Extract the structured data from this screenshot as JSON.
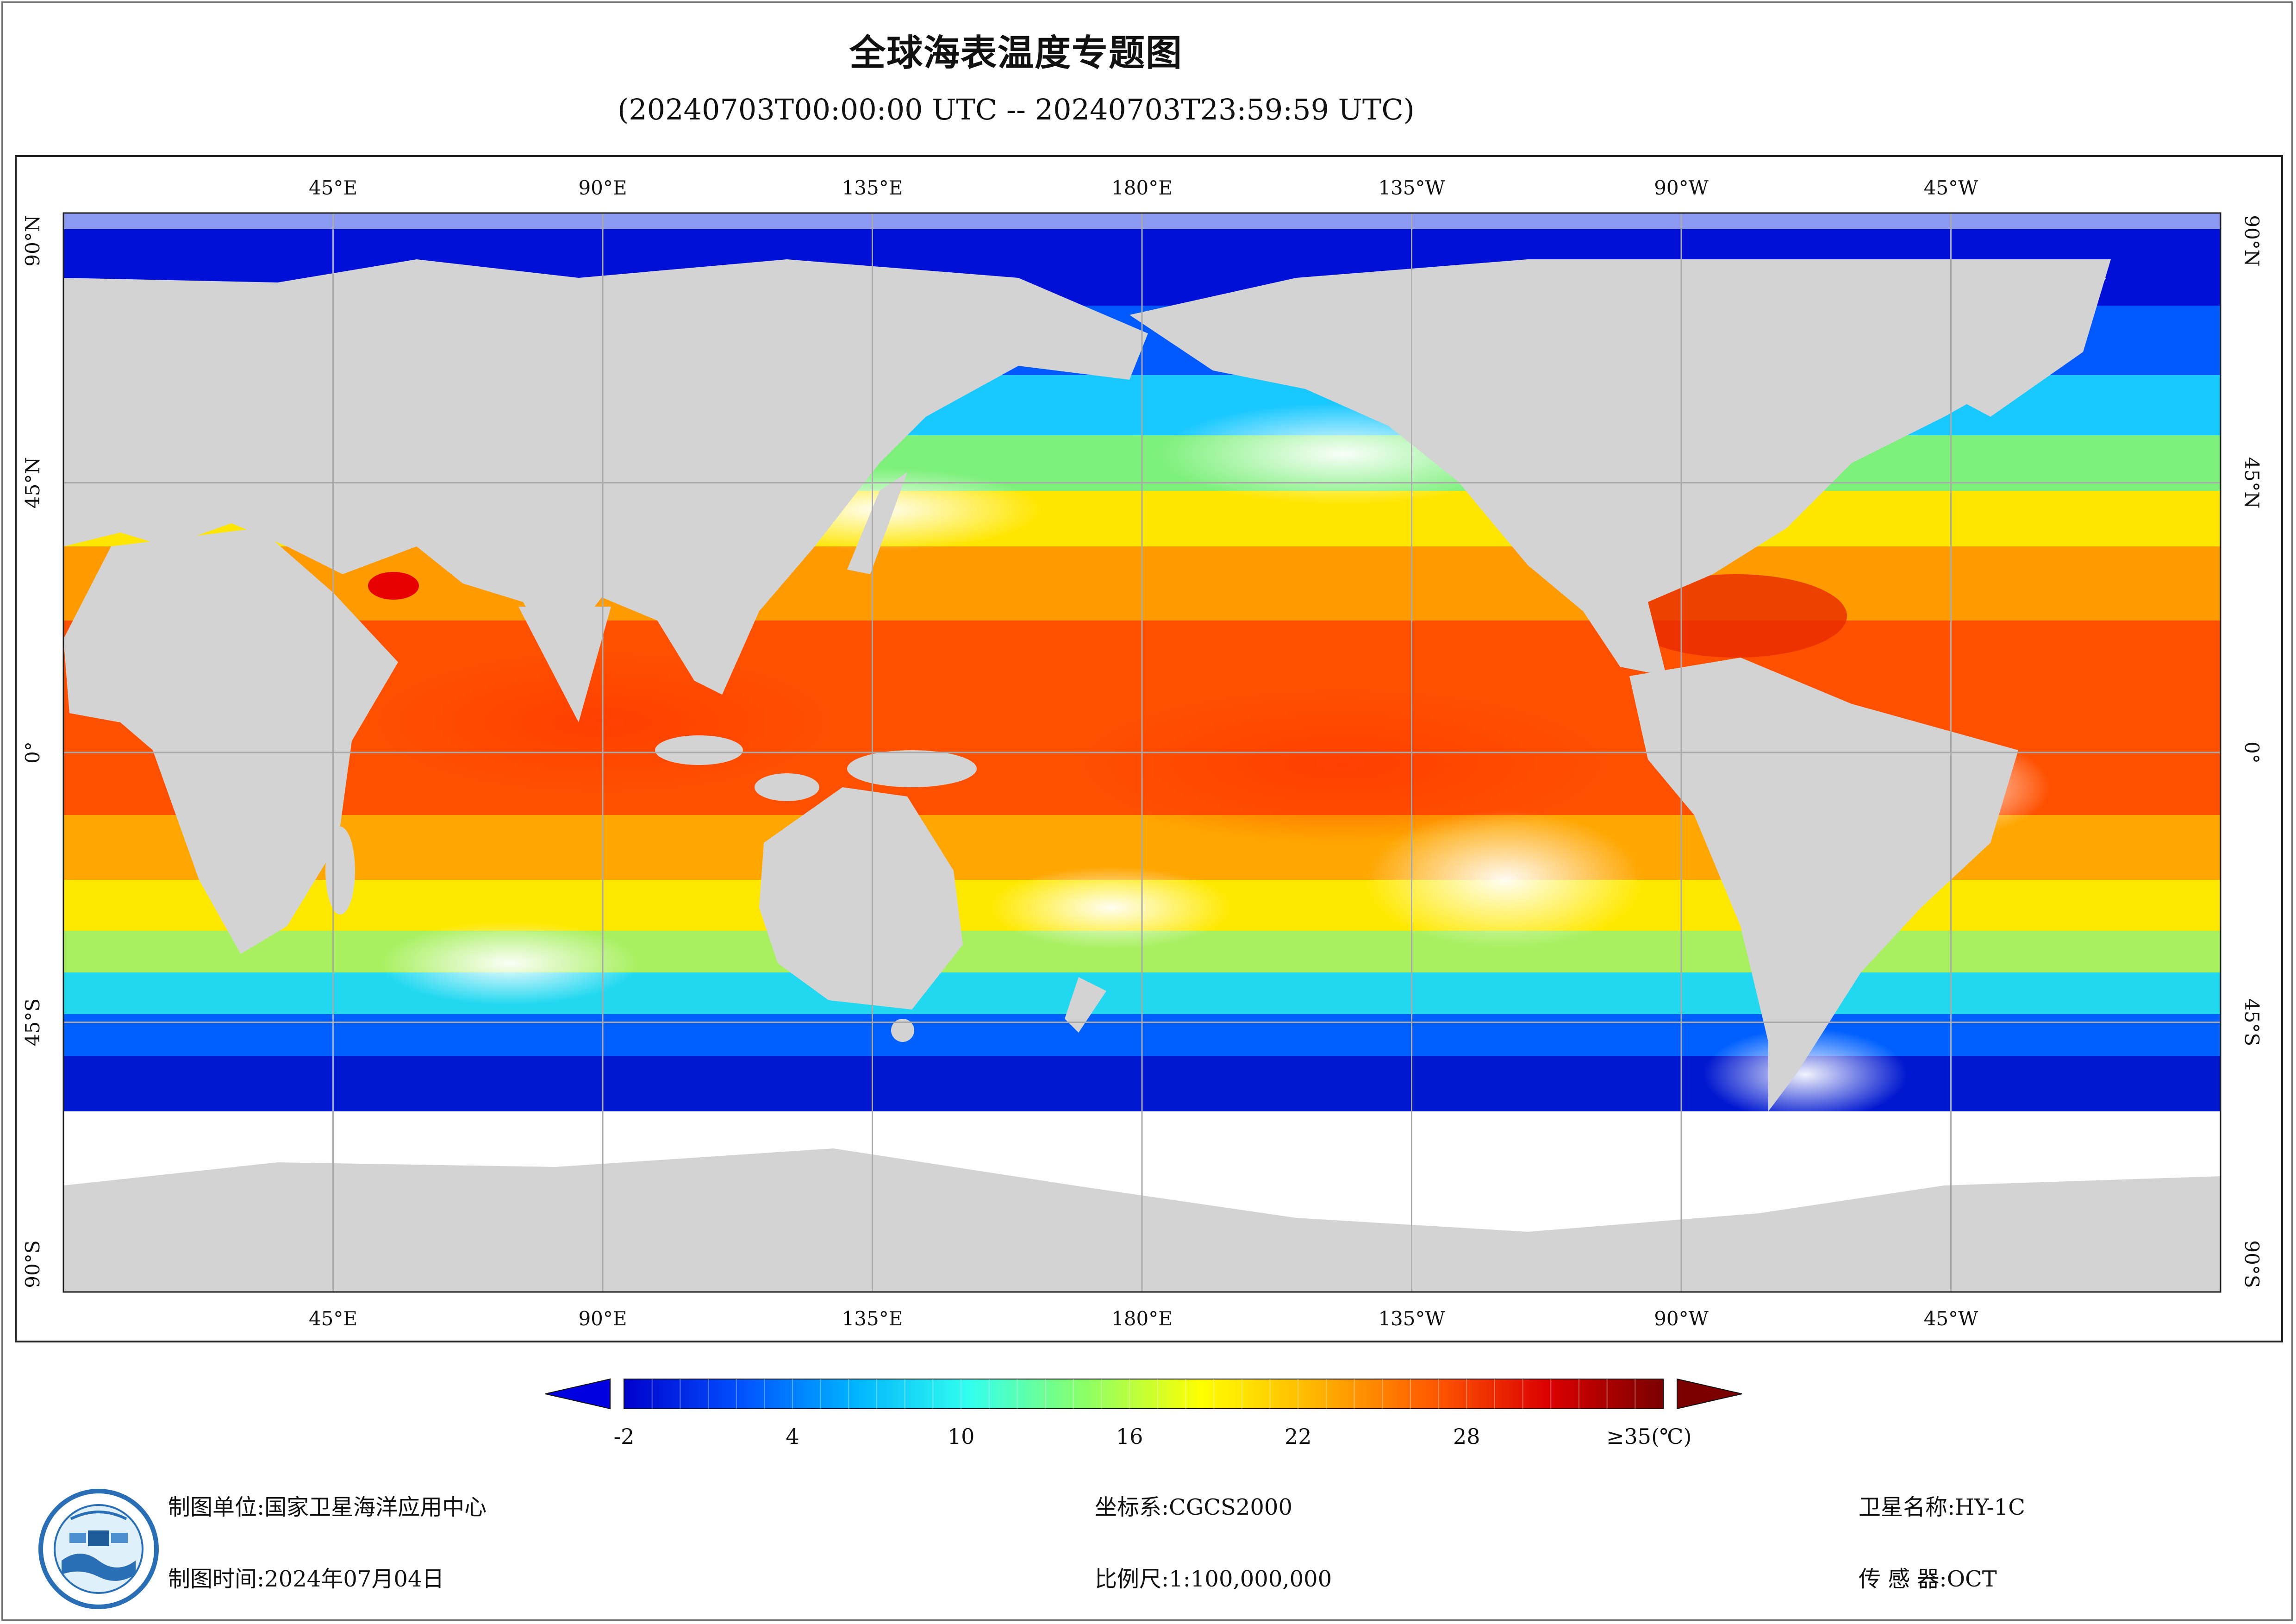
{
  "title": "全球海表温度专题图",
  "subtitle": "(20240703T00:00:00 UTC -- 20240703T23:59:59 UTC)",
  "map": {
    "type": "sea-surface-temperature",
    "projection": "equirectangular",
    "lon_range": [
      0,
      360
    ],
    "lat_range": [
      -90,
      90
    ],
    "grid": true,
    "colors": {
      "land": "#d3d3d3",
      "no_data": "#ffffff",
      "grid": "#aaaaaa"
    },
    "top_lon_labels": [
      "45°E",
      "90°E",
      "135°E",
      "180°E",
      "135°W",
      "90°W",
      "45°W"
    ],
    "bottom_lon_labels": [
      "45°E",
      "90°E",
      "135°E",
      "180°E",
      "135°W",
      "90°W",
      "45°W"
    ],
    "left_lat_labels": [
      "90°N",
      "45°N",
      "0°",
      "45°S",
      "90°S"
    ],
    "right_lat_labels": [
      "90°N",
      "45°N",
      "0°",
      "45°S",
      "90°S"
    ]
  },
  "colorbar": {
    "ticks": [
      "-2",
      "4",
      "10",
      "16",
      "22",
      "28"
    ],
    "max_label": "≥35(℃)",
    "range": [
      -2,
      35
    ],
    "colors": [
      "#0000cc",
      "#0050ff",
      "#00b4ff",
      "#33ffee",
      "#8cff66",
      "#ffff00",
      "#ffb400",
      "#ff5a00",
      "#dc0000",
      "#7a0000"
    ]
  },
  "footer": {
    "producer": "制图单位:国家卫星海洋应用中心",
    "date": "制图时间:2024年07月04日",
    "crs": "坐标系:CGCS2000",
    "scale": "比例尺:1:100,000,000",
    "satellite": "卫星名称:HY-1C",
    "sensor": "传 感 器:OCT"
  },
  "logo": {
    "icon": "nsoas-logo-icon"
  }
}
